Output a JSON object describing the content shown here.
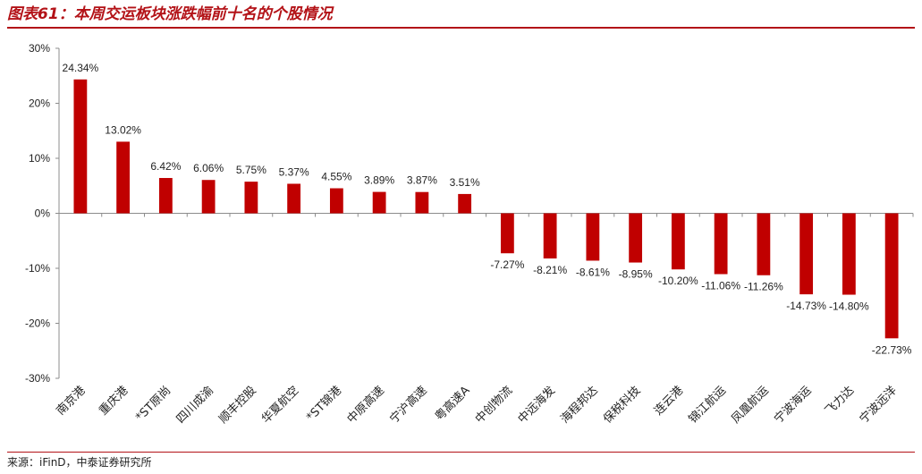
{
  "figure": {
    "title": "图表61：本周交运板块涨跌幅前十名的个股情况",
    "source": "来源：iFinD，中泰证券研究所"
  },
  "colors": {
    "accent": "#b31217",
    "bar": "#c00000",
    "axis": "#8c8c8c",
    "text": "#222222"
  },
  "chart_data": {
    "type": "bar",
    "title": "",
    "xlabel": "",
    "ylabel": "",
    "ylim": [
      -30,
      30
    ],
    "yticks": [
      30,
      20,
      10,
      0,
      -10,
      -20,
      -30
    ],
    "ytick_labels": [
      "30%",
      "20%",
      "10%",
      "0%",
      "-10%",
      "-20%",
      "-30%"
    ],
    "grid": false,
    "legend": "none",
    "categories": [
      "南京港",
      "重庆港",
      "*ST原尚",
      "四川成渝",
      "顺丰控股",
      "华夏航空",
      "*ST锦港",
      "中原高速",
      "宁沪高速",
      "粤高速A",
      "中创物流",
      "中远海发",
      "海程邦达",
      "保税科技",
      "连云港",
      "锦江航运",
      "凤凰航运",
      "宁波海运",
      "飞力达",
      "宁波远洋"
    ],
    "values": [
      24.34,
      13.02,
      6.42,
      6.06,
      5.75,
      5.37,
      4.55,
      3.89,
      3.87,
      3.51,
      -7.27,
      -8.21,
      -8.61,
      -8.95,
      -10.2,
      -11.06,
      -11.26,
      -14.73,
      -14.8,
      -22.73
    ],
    "value_labels": [
      "24.34%",
      "13.02%",
      "6.42%",
      "6.06%",
      "5.75%",
      "5.37%",
      "4.55%",
      "3.89%",
      "3.87%",
      "3.51%",
      "-7.27%",
      "-8.21%",
      "-8.61%",
      "-8.95%",
      "-10.20%",
      "-11.06%",
      "-11.26%",
      "-14.73%",
      "-14.80%",
      "-22.73%"
    ]
  }
}
